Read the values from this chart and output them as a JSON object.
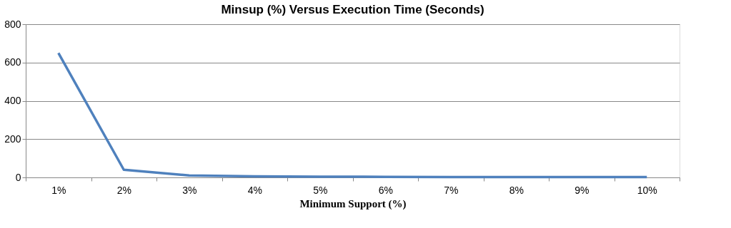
{
  "chart_data": {
    "type": "line",
    "title": "Minsup (%) Versus Execution Time (Seconds)",
    "xlabel": "Minimum Support (%)",
    "categories": [
      "1%",
      "2%",
      "3%",
      "4%",
      "5%",
      "6%",
      "7%",
      "8%",
      "9%",
      "10%"
    ],
    "series": [
      {
        "color": "#4f81bd",
        "values": [
          650,
          40,
          10,
          6,
          4,
          3,
          2,
          2,
          2,
          2
        ]
      }
    ],
    "ylim": [
      0,
      800
    ],
    "yticks": [
      0,
      200,
      400,
      600,
      800
    ],
    "grid": "y",
    "marker": "none",
    "line_style": "solid"
  }
}
